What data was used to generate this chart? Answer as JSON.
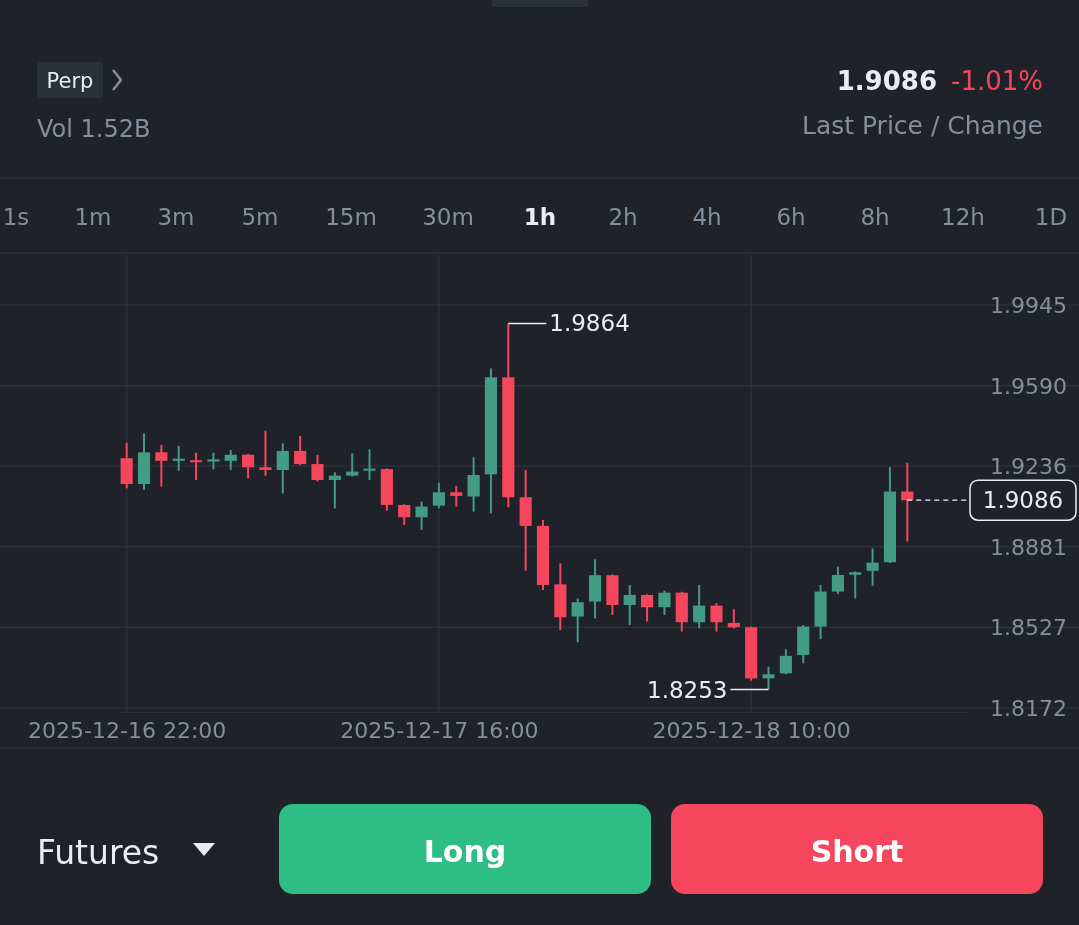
{
  "chart_data": {
    "type": "candlestick",
    "x": [
      "2025-12-16T22:00",
      "2025-12-16T23:00",
      "2025-12-17T00:00",
      "2025-12-17T01:00",
      "2025-12-17T02:00",
      "2025-12-17T03:00",
      "2025-12-17T04:00",
      "2025-12-17T05:00",
      "2025-12-17T06:00",
      "2025-12-17T07:00",
      "2025-12-17T08:00",
      "2025-12-17T09:00",
      "2025-12-17T10:00",
      "2025-12-17T11:00",
      "2025-12-17T12:00",
      "2025-12-17T13:00",
      "2025-12-17T14:00",
      "2025-12-17T15:00",
      "2025-12-17T16:00",
      "2025-12-17T17:00",
      "2025-12-17T18:00",
      "2025-12-17T19:00",
      "2025-12-17T20:00",
      "2025-12-17T21:00",
      "2025-12-17T22:00",
      "2025-12-17T23:00",
      "2025-12-18T00:00",
      "2025-12-18T01:00",
      "2025-12-18T02:00",
      "2025-12-18T03:00",
      "2025-12-18T04:00",
      "2025-12-18T05:00",
      "2025-12-18T06:00",
      "2025-12-18T07:00",
      "2025-12-18T08:00",
      "2025-12-18T09:00",
      "2025-12-18T10:00",
      "2025-12-18T11:00",
      "2025-12-18T12:00",
      "2025-12-18T13:00",
      "2025-12-18T14:00",
      "2025-12-18T15:00",
      "2025-12-18T16:00",
      "2025-12-18T17:00",
      "2025-12-18T18:00",
      "2025-12-18T19:00"
    ],
    "ohlc": [
      [
        1.9271,
        1.9339,
        1.9138,
        1.9157
      ],
      [
        1.9157,
        1.938,
        1.9131,
        1.9297
      ],
      [
        1.9297,
        1.9329,
        1.9146,
        1.9259
      ],
      [
        1.9259,
        1.9325,
        1.9215,
        1.9269
      ],
      [
        1.9262,
        1.9295,
        1.9175,
        1.9253
      ],
      [
        1.9256,
        1.9295,
        1.9222,
        1.9266
      ],
      [
        1.9259,
        1.9307,
        1.9219,
        1.9286
      ],
      [
        1.9286,
        1.929,
        1.9182,
        1.9231
      ],
      [
        1.9231,
        1.9392,
        1.9194,
        1.9219
      ],
      [
        1.9219,
        1.9336,
        1.9116,
        1.9303
      ],
      [
        1.9303,
        1.9369,
        1.924,
        1.9245
      ],
      [
        1.9245,
        1.9285,
        1.9168,
        1.9175
      ],
      [
        1.9175,
        1.9209,
        1.905,
        1.9194
      ],
      [
        1.9194,
        1.9292,
        1.919,
        1.9212
      ],
      [
        1.9216,
        1.931,
        1.9175,
        1.9225
      ],
      [
        1.9223,
        1.9226,
        1.904,
        1.9065
      ],
      [
        1.9065,
        1.9068,
        1.8977,
        1.9011
      ],
      [
        1.9011,
        1.908,
        1.8955,
        1.9058
      ],
      [
        1.9062,
        1.9163,
        1.905,
        1.9121
      ],
      [
        1.9121,
        1.9149,
        1.9058,
        1.9105
      ],
      [
        1.9102,
        1.9275,
        1.9036,
        1.9197
      ],
      [
        1.92,
        1.9666,
        1.9028,
        1.9627
      ],
      [
        1.9627,
        1.9864,
        1.9055,
        1.9099
      ],
      [
        1.9099,
        1.9219,
        1.8776,
        1.8973
      ],
      [
        1.8973,
        1.8999,
        1.8691,
        1.8713
      ],
      [
        1.8716,
        1.8808,
        1.8515,
        1.8571
      ],
      [
        1.8574,
        1.8654,
        1.8461,
        1.8637
      ],
      [
        1.864,
        1.8826,
        1.8566,
        1.8756
      ],
      [
        1.8756,
        1.876,
        1.8581,
        1.8625
      ],
      [
        1.8625,
        1.8713,
        1.8537,
        1.8669
      ],
      [
        1.8669,
        1.8672,
        1.8552,
        1.8615
      ],
      [
        1.8615,
        1.8688,
        1.8581,
        1.8679
      ],
      [
        1.8679,
        1.8683,
        1.8508,
        1.8549
      ],
      [
        1.8549,
        1.8713,
        1.8522,
        1.8622
      ],
      [
        1.8622,
        1.8633,
        1.8508,
        1.8549
      ],
      [
        1.8546,
        1.8606,
        1.8522,
        1.8527
      ],
      [
        1.8527,
        1.853,
        1.8292,
        1.8302
      ],
      [
        1.8302,
        1.8354,
        1.8253,
        1.832
      ],
      [
        1.8324,
        1.843,
        1.832,
        1.8401
      ],
      [
        1.8405,
        1.8537,
        1.8368,
        1.853
      ],
      [
        1.853,
        1.8713,
        1.8475,
        1.8684
      ],
      [
        1.8684,
        1.8794,
        1.8673,
        1.8757
      ],
      [
        1.8758,
        1.8772,
        1.8654,
        1.8769
      ],
      [
        1.8775,
        1.8874,
        1.8709,
        1.8811
      ],
      [
        1.8813,
        1.9231,
        1.881,
        1.9124
      ],
      [
        1.9124,
        1.9251,
        1.8904,
        1.9086
      ]
    ],
    "colors": [
      "#f6465d",
      "#419c82",
      "#f6465d",
      "#419c82",
      "#f6465d",
      "#419c82",
      "#419c82",
      "#f6465d",
      "#f6465d",
      "#419c82",
      "#f6465d",
      "#f6465d",
      "#419c82",
      "#419c82",
      "#419c82",
      "#f6465d",
      "#f6465d",
      "#419c82",
      "#419c82",
      "#f6465d",
      "#419c82",
      "#419c82",
      "#f6465d",
      "#f6465d",
      "#f6465d",
      "#f6465d",
      "#419c82",
      "#419c82",
      "#f6465d",
      "#419c82",
      "#f6465d",
      "#419c82",
      "#f6465d",
      "#419c82",
      "#f6465d",
      "#f6465d",
      "#f6465d",
      "#419c82",
      "#419c82",
      "#419c82",
      "#419c82",
      "#419c82",
      "#419c82",
      "#419c82",
      "#419c82",
      "#f6465d"
    ],
    "xlim": [
      "2025-12-16T21:30",
      "2025-12-18T22:30"
    ],
    "xticks": [
      {
        "value": "2025-12-16T22:00",
        "label": "2025-12-16 22:00"
      },
      {
        "value": "2025-12-17T16:00",
        "label": "2025-12-17 16:00"
      },
      {
        "value": "2025-12-18T10:00",
        "label": "2025-12-18 10:00"
      }
    ],
    "ylim": [
      1.8154,
      2.0165
    ],
    "yticks": [
      1.8172,
      1.8527,
      1.8881,
      1.9236,
      {
        "value": 1.959,
        "label": "1.9590"
      },
      1.9945
    ],
    "grid": true,
    "ref_lines": [
      {
        "axis": "y",
        "value": 1.9086,
        "label": "1.9086",
        "line_style": "dashed",
        "color": "#eaecef"
      }
    ],
    "annotations": [
      "Perp",
      "Vol 1.52B",
      "1.9086",
      "-1.01%",
      "Last Price / Change",
      "1s",
      "1m",
      "3m",
      "5m",
      "15m",
      "30m",
      "1h",
      "2h",
      "4h",
      "6h",
      "8h",
      "12h",
      "1D",
      "Futures",
      "Long",
      "Short",
      {
        "text": "1.9864",
        "x": "2025-12-17T20:00",
        "y": 1.9864
      },
      {
        "text": "1.8253",
        "x": "2025-12-18T11:00",
        "y": 1.8253
      }
    ]
  }
}
